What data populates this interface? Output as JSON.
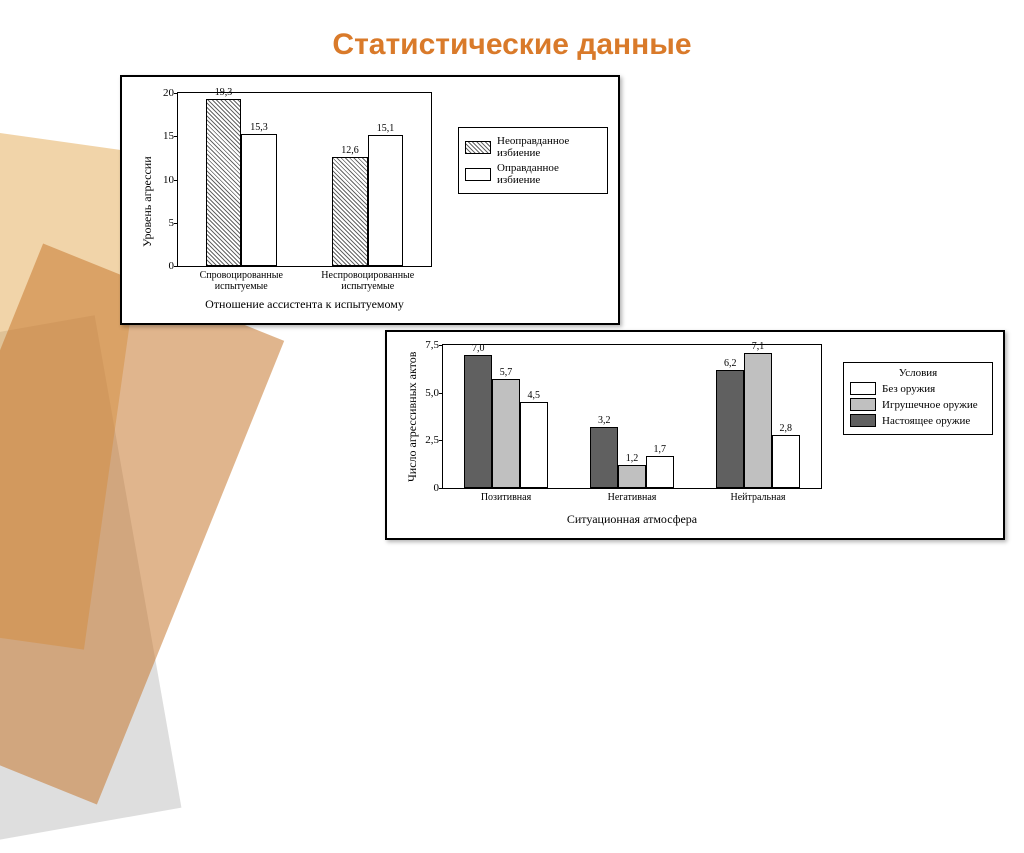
{
  "title": "Статистические данные",
  "title_color": "#d97a2a",
  "background_shapes": [
    {
      "color": "#c6792f",
      "opacity": 0.55
    },
    {
      "color": "#e0a040",
      "opacity": 0.45
    },
    {
      "color": "#a0a0a0",
      "opacity": 0.35
    }
  ],
  "chart1": {
    "type": "bar",
    "ylabel": "Уровень агрессии",
    "xlabel": "Отношение ассистента к испытуемому",
    "ylim": [
      0,
      20
    ],
    "ytick_step": 5,
    "yticks": [
      0,
      5,
      10,
      15,
      20
    ],
    "categories": [
      "Спровоцированные испытуемые",
      "Неспровоцированные испытуемые"
    ],
    "series": [
      {
        "name": "Неоправданное избиение",
        "values": [
          19.3,
          12.6
        ],
        "labels": [
          "19,3",
          "12,6"
        ],
        "pattern": "hatched"
      },
      {
        "name": "Оправданное избиение",
        "values": [
          15.3,
          15.1
        ],
        "labels": [
          "15,3",
          "15,1"
        ],
        "pattern": "white"
      }
    ],
    "label_fontsize": 12,
    "tick_fontsize": 11,
    "value_fontsize": 10,
    "bar_width": 0.35,
    "border_color": "#000000",
    "background_color": "#ffffff"
  },
  "chart2": {
    "type": "bar",
    "ylabel": "Число агрессивных актов",
    "xlabel": "Ситуационная атмосфера",
    "ylim": [
      0,
      7.5
    ],
    "ytick_step": 2.5,
    "yticks": [
      "0",
      "2,5",
      "5,0",
      "7,5"
    ],
    "ytick_values": [
      0,
      2.5,
      5.0,
      7.5
    ],
    "categories": [
      "Позитивная",
      "Негативная",
      "Нейтральная"
    ],
    "legend_title": "Условия",
    "series": [
      {
        "name": "Настоящее оружие",
        "values": [
          7.0,
          3.2,
          6.2
        ],
        "labels": [
          "7,0",
          "3,2",
          "6,2"
        ],
        "pattern": "dark"
      },
      {
        "name": "Игрушечное оружие",
        "values": [
          5.7,
          1.2,
          7.1
        ],
        "labels": [
          "5,7",
          "1,2",
          "7,1"
        ],
        "pattern": "light"
      },
      {
        "name": "Без оружия",
        "values": [
          4.5,
          1.7,
          2.8
        ],
        "labels": [
          "4,5",
          "1,7",
          "2,8"
        ],
        "pattern": "white"
      }
    ],
    "legend_order": [
      "Без оружия",
      "Игрушечное оружие",
      "Настоящее оружие"
    ],
    "label_fontsize": 12,
    "tick_fontsize": 11,
    "value_fontsize": 10,
    "bar_width": 0.25,
    "border_color": "#000000",
    "background_color": "#ffffff"
  }
}
